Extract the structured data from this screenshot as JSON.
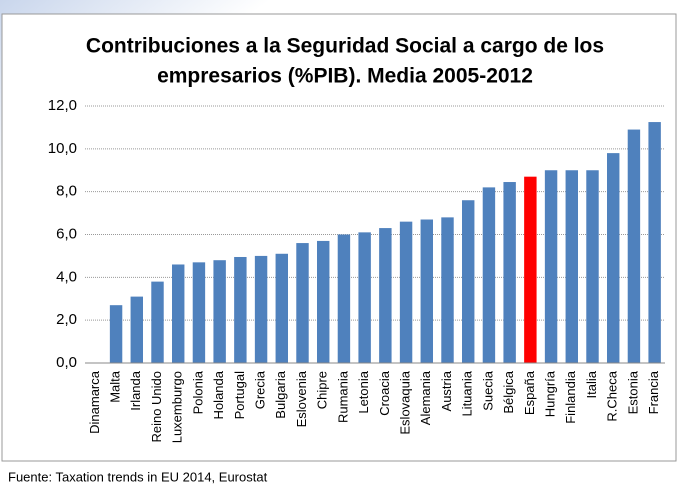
{
  "chart_data": {
    "type": "bar",
    "title": [
      "Contribuciones a la Seguridad Social a cargo de los",
      "empresarios (%PIB). Media 2005-2012"
    ],
    "categories": [
      "Dinamarca",
      "Malta",
      "Irlanda",
      "Reino Unido",
      "Luxemburgo",
      "Polonia",
      "Holanda",
      "Portugal",
      "Grecia",
      "Bulgaria",
      "Eslovenia",
      "Chipre",
      "Rumania",
      "Letonia",
      "Croacia",
      "Eslovaquia",
      "Alemania",
      "Austria",
      "Lituania",
      "Suecia",
      "Bélgica",
      "España",
      "Hungría",
      "Finlandia",
      "Italia",
      "R.Checa",
      "Estonia",
      "Francia"
    ],
    "values": [
      0,
      2.7,
      3.1,
      3.8,
      4.6,
      4.7,
      4.8,
      4.95,
      5.0,
      5.1,
      5.6,
      5.7,
      6.0,
      6.1,
      6.3,
      6.6,
      6.7,
      6.8,
      7.6,
      8.2,
      8.45,
      8.7,
      9.0,
      9.0,
      9.0,
      9.8,
      10.9,
      11.25
    ],
    "color": "#4f81bd",
    "highlight": {
      "category": "España",
      "color": "#ff0000"
    },
    "ylim": [
      0,
      12
    ],
    "yticks": [
      {
        "value": 0,
        "label": "0,0"
      },
      {
        "value": 2,
        "label": "2,0"
      },
      {
        "value": 4,
        "label": "4,0"
      },
      {
        "value": 6,
        "label": "6,0"
      },
      {
        "value": 8,
        "label": "8,0"
      },
      {
        "value": 10,
        "label": "10,0"
      },
      {
        "value": 12,
        "label": "12,0"
      }
    ],
    "grid": true,
    "source": "Fuente: Taxation trends in EU 2014, Eurostat"
  }
}
